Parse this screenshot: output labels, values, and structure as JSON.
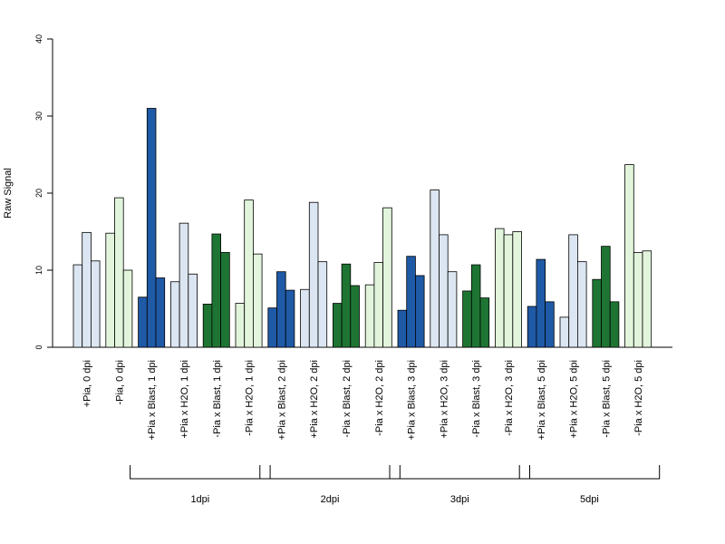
{
  "chart_data": {
    "type": "bar",
    "ylabel": "Raw Signal",
    "ylim": [
      0,
      40
    ],
    "yticks": [
      0,
      10,
      20,
      30,
      40
    ],
    "categories": [
      "+Pia, 0 dpi",
      "-Pia, 0 dpi",
      "+Pia x Blast, 1 dpi",
      "+Pia x H2O, 1 dpi",
      "-Pia x Blast, 1 dpi",
      "-Pia x H2O, 1 dpi",
      "+Pia x Blast, 2 dpi",
      "+Pia x H2O, 2 dpi",
      "-Pia x Blast, 2 dpi",
      "-Pia x H2O, 2 dpi",
      "+Pia x Blast, 3 dpi",
      "+Pia x H2O, 3 dpi",
      "-Pia x Blast, 3 dpi",
      "-Pia x H2O, 3 dpi",
      "+Pia x Blast, 5 dpi",
      "+Pia x H2O, 5 dpi",
      "-Pia x Blast, 5 dpi",
      "-Pia x H2O, 5 dpi"
    ],
    "category_colors": [
      "#dce6f2",
      "#e2f5dc",
      "#1f5aa6",
      "#dce6f2",
      "#1e7533",
      "#e2f5dc",
      "#1f5aa6",
      "#dce6f2",
      "#1e7533",
      "#e2f5dc",
      "#1f5aa6",
      "#dce6f2",
      "#1e7533",
      "#e2f5dc",
      "#1f5aa6",
      "#dce6f2",
      "#1e7533",
      "#e2f5dc"
    ],
    "values": [
      [
        10.7,
        14.9,
        11.2
      ],
      [
        14.8,
        19.4,
        10.0
      ],
      [
        6.5,
        31.0,
        9.0
      ],
      [
        8.5,
        16.1,
        9.5
      ],
      [
        5.6,
        14.7,
        12.3
      ],
      [
        5.7,
        19.1,
        12.1
      ],
      [
        5.1,
        9.8,
        7.4
      ],
      [
        7.5,
        18.8,
        11.1
      ],
      [
        5.7,
        10.8,
        8.0
      ],
      [
        8.1,
        11.0,
        18.1
      ],
      [
        4.8,
        11.8,
        9.3
      ],
      [
        20.4,
        14.6,
        9.8
      ],
      [
        7.3,
        10.7,
        6.4
      ],
      [
        15.4,
        14.6,
        15.0
      ],
      [
        5.3,
        11.4,
        5.9
      ],
      [
        3.9,
        14.6,
        11.1
      ],
      [
        8.8,
        13.1,
        5.9
      ],
      [
        23.7,
        12.3,
        12.5
      ]
    ],
    "groups": [
      {
        "label": "1dpi",
        "from": 2,
        "to": 5
      },
      {
        "label": "2dpi",
        "from": 6,
        "to": 9
      },
      {
        "label": "3dpi",
        "from": 10,
        "to": 13
      },
      {
        "label": "5dpi",
        "from": 14,
        "to": 17
      }
    ],
    "grid": false,
    "legend": "none"
  }
}
